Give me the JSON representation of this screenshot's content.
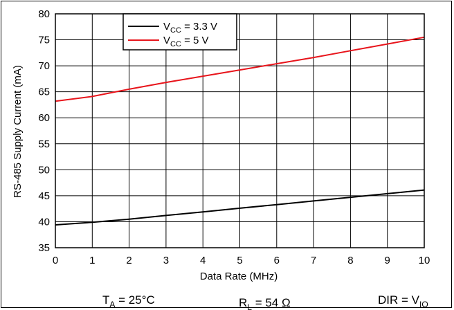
{
  "chart_data": {
    "type": "line",
    "title": "",
    "xlabel": "Data Rate (MHz)",
    "ylabel": "RS-485 Supply Current (mA)",
    "xlim": [
      0,
      10
    ],
    "ylim": [
      35,
      80
    ],
    "x_ticks": [
      "0",
      "1",
      "2",
      "3",
      "4",
      "5",
      "6",
      "7",
      "8",
      "9",
      "10"
    ],
    "y_ticks": [
      "35",
      "40",
      "45",
      "50",
      "55",
      "60",
      "65",
      "70",
      "75",
      "80"
    ],
    "grid": true,
    "legend_position": "top-center",
    "series": [
      {
        "name": "VCC = 3.3 V",
        "name_parts": {
          "main": "V",
          "sub": "CC",
          "rest": " = 3.3 V"
        },
        "color": "#000000",
        "x": [
          0,
          1,
          2,
          3,
          4,
          5,
          6,
          7,
          8,
          9,
          10
        ],
        "y": [
          39.4,
          39.9,
          40.5,
          41.2,
          41.9,
          42.6,
          43.3,
          44.0,
          44.7,
          45.4,
          46.1
        ]
      },
      {
        "name": "VCC = 5 V",
        "name_parts": {
          "main": "V",
          "sub": "CC",
          "rest": " = 5 V"
        },
        "color": "#e8141b",
        "x": [
          0,
          1,
          2,
          3,
          4,
          5,
          6,
          7,
          8,
          9,
          10
        ],
        "y": [
          63.2,
          64.1,
          65.5,
          66.8,
          68.0,
          69.2,
          70.4,
          71.6,
          72.9,
          74.2,
          75.5
        ]
      }
    ]
  },
  "conditions": {
    "ta": {
      "main": "T",
      "sub": "A",
      "rest": " = 25°C"
    },
    "rl": {
      "main": "R",
      "sub": "L",
      "rest": " = 54 Ω"
    },
    "dir": {
      "main": "DIR = V",
      "sub": "IO",
      "rest": ""
    }
  }
}
